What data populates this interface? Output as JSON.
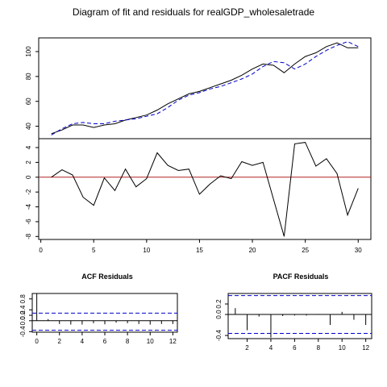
{
  "title": "Diagram of fit and residuals for realGDP_wholesaletrade",
  "colors": {
    "actual": "#000000",
    "fitted": "#0000cd",
    "zero_line": "#b22222",
    "ci_band": "#0000cd"
  },
  "chart_data": [
    {
      "id": "fit",
      "type": "line",
      "x": [
        1,
        2,
        3,
        4,
        5,
        6,
        7,
        8,
        9,
        10,
        11,
        12,
        13,
        14,
        15,
        16,
        17,
        18,
        19,
        20,
        21,
        22,
        23,
        24,
        25,
        26,
        27,
        28,
        29,
        30
      ],
      "series": [
        {
          "role": "actual",
          "values": [
            34,
            37,
            41,
            41,
            39,
            41,
            42,
            45,
            47,
            49,
            53,
            58,
            62,
            66,
            68,
            71,
            74,
            77,
            81,
            86,
            90,
            89,
            83,
            90,
            96,
            99,
            104,
            107,
            103,
            103
          ]
        },
        {
          "role": "fitted",
          "values": [
            33,
            38,
            42,
            43,
            42,
            42,
            44,
            45,
            46,
            48,
            50,
            55,
            61,
            65,
            67,
            70,
            72,
            75,
            78,
            82,
            88,
            92,
            91,
            86,
            90,
            96,
            101,
            105,
            108,
            104
          ]
        }
      ],
      "yticks": [
        40,
        60,
        80,
        100
      ],
      "ylim": [
        30,
        111
      ]
    },
    {
      "id": "residuals",
      "type": "line",
      "x": [
        1,
        2,
        3,
        4,
        5,
        6,
        7,
        8,
        9,
        10,
        11,
        12,
        13,
        14,
        15,
        16,
        17,
        18,
        19,
        20,
        21,
        22,
        23,
        24,
        25,
        26,
        27,
        28,
        29,
        30
      ],
      "values": [
        0.0,
        1.0,
        0.3,
        -2.7,
        -3.8,
        -0.1,
        -1.8,
        1.1,
        -1.3,
        -0.2,
        3.3,
        1.6,
        0.9,
        1.1,
        -2.3,
        -0.9,
        0.2,
        -0.2,
        2.1,
        1.6,
        2.0,
        -3.0,
        -8.0,
        4.5,
        4.7,
        1.5,
        2.5,
        0.5,
        -5.1,
        -1.5
      ],
      "yticks": [
        -8,
        -6,
        -4,
        -2,
        0,
        2,
        4
      ],
      "xticks": [
        0,
        5,
        10,
        15,
        20,
        25,
        30
      ],
      "ylim": [
        -8.4,
        5.2
      ],
      "xlim": [
        -0.2,
        31.2
      ]
    },
    {
      "id": "acf",
      "type": "bar",
      "title": "ACF Residuals",
      "lags": [
        0,
        1,
        2,
        3,
        4,
        5,
        6,
        7,
        8,
        9,
        10,
        11,
        12
      ],
      "values": [
        1.0,
        0.06,
        -0.12,
        -0.14,
        -0.14,
        -0.09,
        -0.13,
        -0.07,
        -0.09,
        -0.12,
        -0.14,
        -0.12,
        -0.12
      ],
      "ci": [
        0.28,
        -0.35
      ],
      "yticks": [
        "-0.4",
        "0.0",
        "0.2",
        "0.4",
        "0.8"
      ],
      "ytick_values": [
        -0.4,
        0.0,
        0.2,
        0.4,
        0.8
      ],
      "xticks": [
        "0",
        "2",
        "4",
        "6",
        "8",
        "10",
        "12"
      ],
      "xtick_values": [
        0,
        2,
        4,
        6,
        8,
        10,
        12
      ],
      "ylim": [
        -0.42,
        1.0
      ],
      "xlim": [
        -0.4,
        12.4
      ]
    },
    {
      "id": "pacf",
      "type": "bar",
      "title": "PACF Residuals",
      "lags": [
        1,
        2,
        3,
        4,
        5,
        6,
        7,
        8,
        9,
        10,
        11,
        12
      ],
      "values": [
        0.12,
        -0.3,
        -0.04,
        -0.44,
        -0.03,
        -0.02,
        -0.02,
        0.01,
        -0.2,
        0.05,
        -0.1,
        -0.2
      ],
      "ci": [
        0.36,
        -0.36
      ],
      "yticks": [
        "-0.4",
        "0.0",
        "0.2"
      ],
      "ytick_values": [
        -0.4,
        0.0,
        0.2
      ],
      "xticks": [
        "2",
        "4",
        "6",
        "8",
        "10",
        "12"
      ],
      "xtick_values": [
        2,
        4,
        6,
        8,
        10,
        12
      ],
      "ylim": [
        -0.46,
        0.4
      ],
      "xlim": [
        0.4,
        12.5
      ]
    }
  ]
}
